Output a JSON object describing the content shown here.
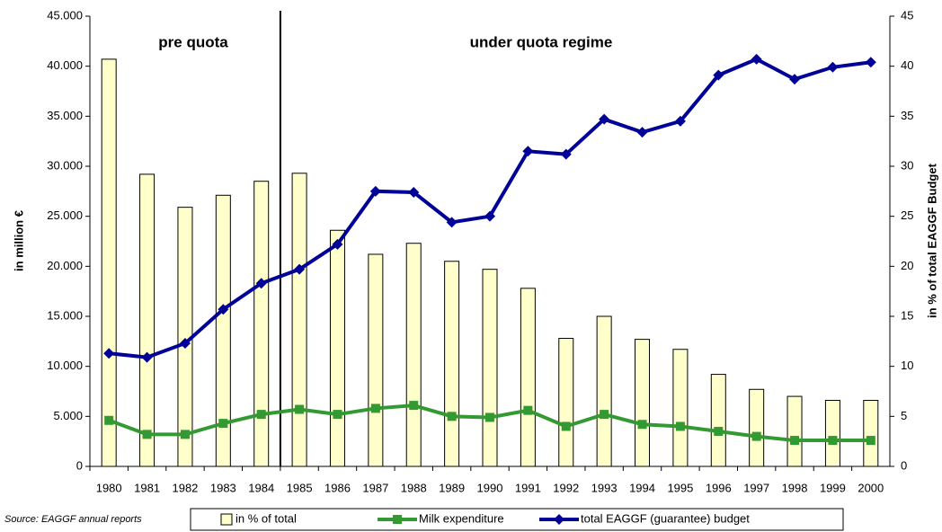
{
  "chart_data": {
    "type": "bar",
    "annotations": [
      "pre quota",
      "under quota regime"
    ],
    "source": "Source:  EAGGF annual reports",
    "y_label": "in million €",
    "y2_label": "in % of total EAGGF Budget",
    "categories": [
      "1980",
      "1981",
      "1982",
      "1983",
      "1984",
      "1985",
      "1986",
      "1987",
      "1988",
      "1989",
      "1990",
      "1991",
      "1992",
      "1993",
      "1994",
      "1995",
      "1996",
      "1997",
      "1998",
      "1999",
      "2000"
    ],
    "series": [
      {
        "name": "in % of total",
        "type": "bar",
        "axis": "y2",
        "color": "#ffffcc",
        "values": [
          40.7,
          29.2,
          25.9,
          27.1,
          28.5,
          29.3,
          23.6,
          21.2,
          22.3,
          20.5,
          19.7,
          17.8,
          12.8,
          15.0,
          12.7,
          11.7,
          9.2,
          7.7,
          7.0,
          6.6,
          6.6
        ]
      },
      {
        "name": "Milk expenditure",
        "type": "line",
        "marker": "square",
        "color": "#339933",
        "values": [
          4600,
          3200,
          3200,
          4300,
          5200,
          5700,
          5200,
          5800,
          6100,
          5000,
          4900,
          5600,
          4000,
          5200,
          4200,
          4000,
          3500,
          3000,
          2600,
          2600,
          2600
        ]
      },
      {
        "name": "total EAGGF (guarantee) budget",
        "type": "line",
        "marker": "diamond",
        "color": "#000099",
        "values": [
          11300,
          10900,
          12300,
          15700,
          18300,
          19700,
          22200,
          27500,
          27400,
          24400,
          25000,
          31500,
          31200,
          34700,
          33400,
          34500,
          39100,
          40700,
          38700,
          39900,
          40400
        ]
      }
    ],
    "ylim": [
      0,
      45000
    ],
    "yticks": [
      0,
      {
        "value": 5000,
        "label": "5.000"
      },
      {
        "value": 10000,
        "label": "10.000"
      },
      {
        "value": 15000,
        "label": "15.000"
      },
      {
        "value": 20000,
        "label": "20.000"
      },
      {
        "value": 25000,
        "label": "25.000"
      },
      {
        "value": 30000,
        "label": "30.000"
      },
      {
        "value": 35000,
        "label": "35.000"
      },
      {
        "value": 40000,
        "label": "40.000"
      },
      {
        "value": 45000,
        "label": "45.000"
      }
    ],
    "y2lim": [
      0,
      45
    ],
    "y2ticks": [
      0,
      5,
      10,
      15,
      20,
      25,
      30,
      35,
      40,
      45
    ],
    "grid": false
  }
}
